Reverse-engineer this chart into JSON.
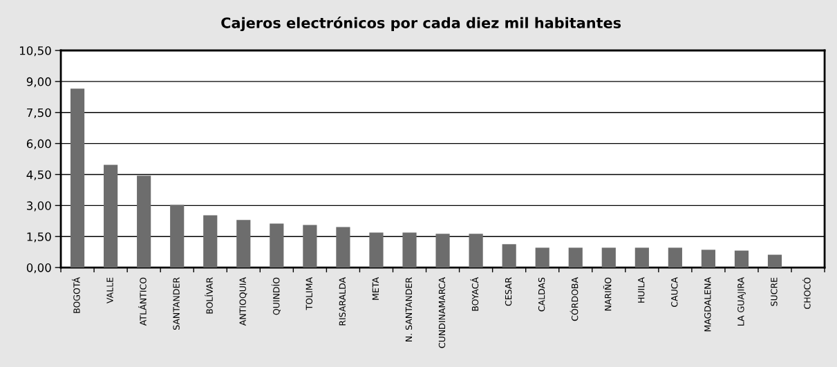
{
  "chart_data": {
    "type": "bar",
    "title": "Cajeros electrónicos por cada diez mil habitantes",
    "categories": [
      "BOGOTÁ",
      "VALLE",
      "ATLÁNTICO",
      "SANTANDER",
      "BOLÍVAR",
      "ANTIOQUIA",
      "QUINDÍO",
      "TOLIMA",
      "RISARALDA",
      "META",
      "N. SANTANDER",
      "CUNDINAMARCA",
      "BOYACÁ",
      "CESAR",
      "CALDAS",
      "CÓRDOBA",
      "NARIÑO",
      "HUILA",
      "CAUCA",
      "MAGDALENA",
      "LA GUAJIRA",
      "SUCRE",
      "CHOCÓ"
    ],
    "values": [
      8.65,
      4.97,
      4.44,
      3.03,
      2.53,
      2.3,
      2.13,
      2.06,
      1.96,
      1.69,
      1.69,
      1.63,
      1.63,
      1.13,
      0.96,
      0.96,
      0.96,
      0.96,
      0.96,
      0.86,
      0.82,
      0.62,
      0
    ],
    "color": "#6d6d6d",
    "ylim": [
      0,
      10.5
    ],
    "yticks": [
      {
        "value": 0,
        "label": "0,00"
      },
      {
        "value": 1.5,
        "label": "1,50"
      },
      {
        "value": 3,
        "label": "3,00"
      },
      {
        "value": 4.5,
        "label": "4,50"
      },
      {
        "value": 6,
        "label": "6,00"
      },
      {
        "value": 7.5,
        "label": "7,50"
      },
      {
        "value": 9,
        "label": "9,00"
      },
      {
        "value": 10.5,
        "label": "10,50"
      }
    ],
    "grid": "y",
    "legend": false
  }
}
